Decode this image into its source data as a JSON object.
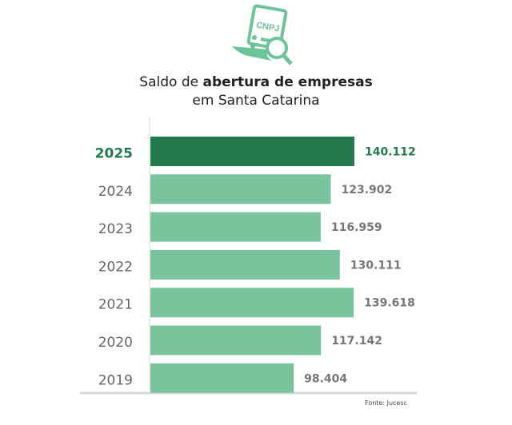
{
  "icon": {
    "name": "cnpj-document-search-icon",
    "label": "CNPJ"
  },
  "chart_data": {
    "type": "bar",
    "orientation": "horizontal",
    "title_prefix": "Saldo de ",
    "title_bold": "abertura de empresas",
    "title_line2": "em Santa Catarina",
    "categories": [
      "2025",
      "2024",
      "2023",
      "2022",
      "2021",
      "2020",
      "2019"
    ],
    "values": [
      140112,
      123902,
      116959,
      130111,
      139618,
      117142,
      98404
    ],
    "value_labels": [
      "140.112",
      "123.902",
      "116.959",
      "130.111",
      "139.618",
      "117.142",
      "98.404"
    ],
    "highlight": "2025",
    "colors": {
      "highlight": "#237a4e",
      "bar": "#7ac49d",
      "label": "#777777",
      "highlight_label": "#237a4e"
    },
    "source": "Fonte: Jucesc"
  }
}
